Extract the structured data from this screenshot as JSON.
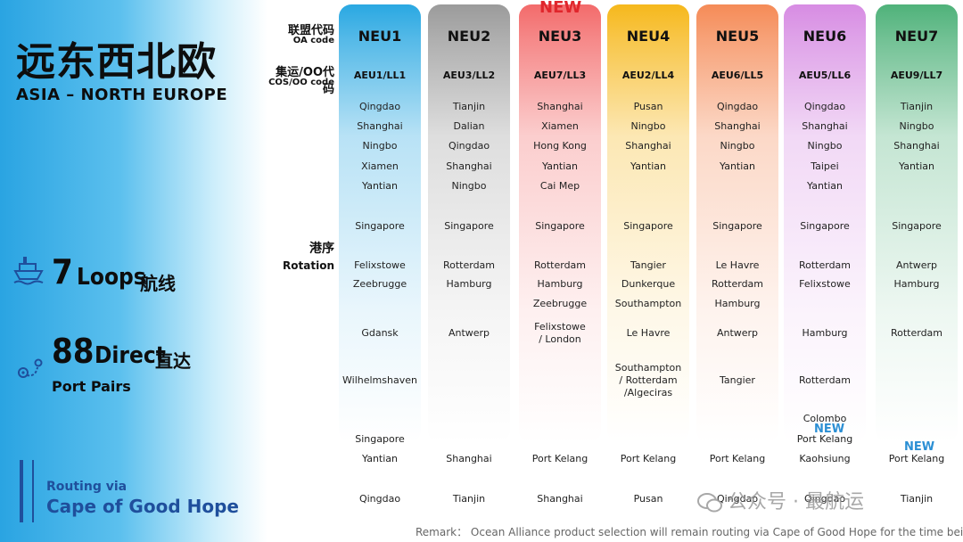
{
  "title": {
    "cn": "远东西北欧",
    "en": "ASIA – NORTH EUROPE"
  },
  "headers": {
    "oa_cn": "联盟代码",
    "oa_en": "OA code",
    "cos_cn": "集运/OO代码",
    "cos_en": "COS/OO code",
    "rot_cn": "港序",
    "rot_en": "Rotation"
  },
  "stats": {
    "loops_num": "7",
    "loops_en": "Loops",
    "loops_cn": "航线",
    "direct_num": "88",
    "direct_en": "Direct",
    "direct_cn": "直达",
    "direct_sub": "Port Pairs"
  },
  "routing": {
    "via": "Routing via",
    "cape": "Cape of Good Hope"
  },
  "new_label": "NEW",
  "colors": {
    "NEU1": "#2aa8e2",
    "NEU2": "#9b9b9b",
    "NEU3": "#f36b6b",
    "NEU4": "#f6b81c",
    "NEU5": "#f58b57",
    "NEU6": "#d78ce3",
    "NEU7": "#4fb27a",
    "new_red": "#e0262c",
    "new_blue": "#2c8fd4"
  },
  "columns": [
    {
      "name": "NEU1",
      "code": "AEU1/LL1",
      "ports": [
        "Qingdao",
        "Shanghai",
        "Ningbo",
        "Xiamen",
        "Yantian",
        "Singapore",
        "Felixstowe",
        "Zeebrugge",
        "Gdansk",
        "Wilhelmshaven",
        "Singapore",
        "Yantian",
        "Qingdao"
      ]
    },
    {
      "name": "NEU2",
      "code": "AEU3/LL2",
      "ports": [
        "Tianjin",
        "Dalian",
        "Qingdao",
        "Shanghai",
        "Ningbo",
        "Singapore",
        "Rotterdam",
        "Hamburg",
        "Antwerp",
        "Shanghai",
        "Tianjin"
      ]
    },
    {
      "name": "NEU3",
      "code": "AEU7/LL3",
      "ports": [
        "Shanghai",
        "Xiamen",
        "Hong Kong",
        "Yantian",
        "Cai Mep",
        "Singapore",
        "Rotterdam",
        "Hamburg",
        "Zeebrugge",
        "Felixstowe",
        "/ London",
        "Port Kelang",
        "Shanghai"
      ]
    },
    {
      "name": "NEU4",
      "code": "AEU2/LL4",
      "ports": [
        "Pusan",
        "Ningbo",
        "Shanghai",
        "Yantian",
        "Singapore",
        "Tangier",
        "Dunkerque",
        "Southampton",
        "Le Havre",
        "Southampton",
        "/ Rotterdam",
        "/Algeciras",
        "Port Kelang",
        "Pusan"
      ]
    },
    {
      "name": "NEU5",
      "code": "AEU6/LL5",
      "ports": [
        "Qingdao",
        "Shanghai",
        "Ningbo",
        "Yantian",
        "Singapore",
        "Le Havre",
        "Rotterdam",
        "Hamburg",
        "Antwerp",
        "Tangier",
        "Port Kelang",
        "Qingdao"
      ]
    },
    {
      "name": "NEU6",
      "code": "AEU5/LL6",
      "ports": [
        "Qingdao",
        "Shanghai",
        "Ningbo",
        "Taipei",
        "Yantian",
        "Singapore",
        "Rotterdam",
        "Felixstowe",
        "Hamburg",
        "Rotterdam",
        "Colombo",
        "Port Kelang",
        "Kaohsiung",
        "Qingdao"
      ]
    },
    {
      "name": "NEU7",
      "code": "AEU9/LL7",
      "ports": [
        "Tianjin",
        "Ningbo",
        "Shanghai",
        "Yantian",
        "Singapore",
        "Antwerp",
        "Hamburg",
        "Rotterdam",
        "Port Kelang",
        "Tianjin"
      ]
    }
  ],
  "watermark": "公众号 · 最航运",
  "remark": "Remark： Ocean Alliance product selection will remain routing via Cape of Good Hope for the time being."
}
